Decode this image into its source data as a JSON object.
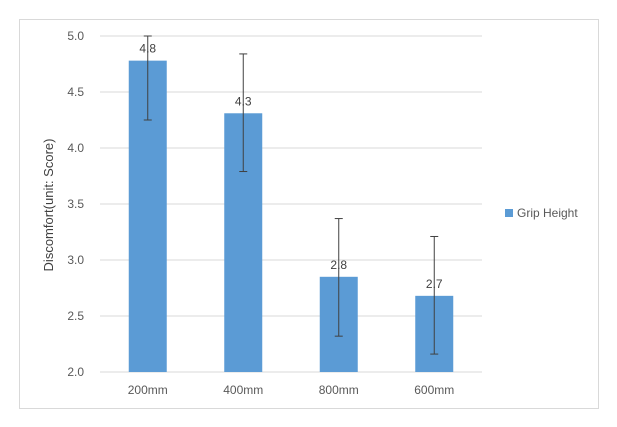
{
  "chart_data": {
    "type": "bar",
    "title": "",
    "xlabel": "",
    "ylabel": "Discomfort(unit: Score)",
    "categories": [
      "200mm",
      "400mm",
      "800mm",
      "600mm"
    ],
    "series": [
      {
        "name": "Grip Height",
        "color": "#5b9bd5",
        "values": [
          4.78,
          4.31,
          2.85,
          2.68
        ],
        "error_low": [
          4.25,
          3.79,
          2.32,
          2.16
        ],
        "error_high": [
          5.0,
          4.84,
          3.37,
          3.21
        ],
        "data_labels": [
          "4.8",
          "4.3",
          "2.8",
          "2.7"
        ]
      }
    ],
    "ylim": [
      2.0,
      5.0
    ],
    "yticks": [
      "2.0",
      "2.5",
      "3.0",
      "3.5",
      "4.0",
      "4.5",
      "5.0"
    ],
    "grid": true,
    "legend_position": "right"
  }
}
